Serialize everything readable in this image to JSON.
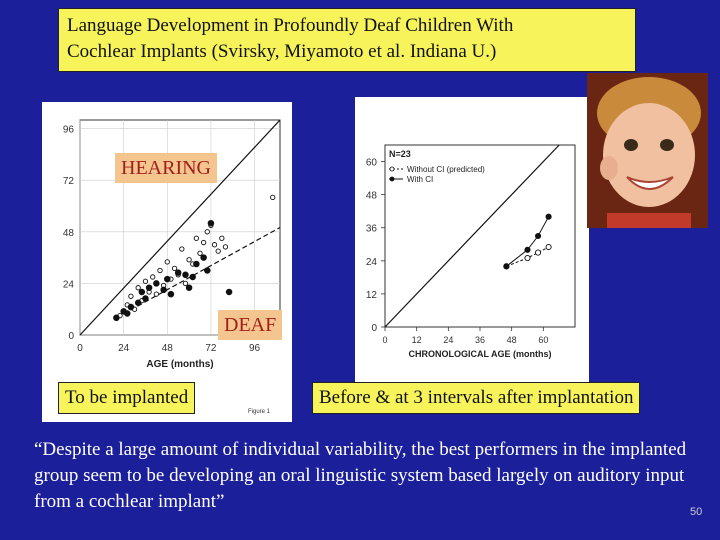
{
  "title": {
    "line1": "Language Development in Profoundly Deaf Children With",
    "line2": "Cochlear Implants (Svirsky, Miyamoto et al. Indiana  U.)"
  },
  "labels": {
    "hearing": "HEARING",
    "deaf": "DEAF",
    "to_be_implanted": "To be implanted",
    "before_after": "Before & at 3 intervals after implantation",
    "figure_caption": "Figure 1"
  },
  "quote": "“Despite a large amount of individual variability, the best performers in the implanted group seem to be developing an oral linguistic system based largely on auditory input from a cochlear implant”",
  "slide_number": "50",
  "colors": {
    "background": "#1b1f9a",
    "highlight": "#f7f35a",
    "tag_bg": "#f4c58f",
    "tag_text": "#a0201a"
  },
  "chart_data": [
    {
      "type": "scatter",
      "xlabel": "AGE (months)",
      "ylabel": "",
      "xticks": [
        "0",
        "24",
        "48",
        "72",
        "96"
      ],
      "yticks": [
        "0",
        "24",
        "48",
        "72",
        "96"
      ],
      "xlim": [
        0,
        110
      ],
      "ylim": [
        0,
        100
      ],
      "reference_line": [
        [
          0,
          0
        ],
        [
          110,
          110
        ]
      ],
      "trend_line": [
        [
          20,
          8
        ],
        [
          110,
          50
        ]
      ],
      "series": [
        {
          "style": "open",
          "points": [
            [
              22,
              9
            ],
            [
              26,
              14
            ],
            [
              28,
              18
            ],
            [
              30,
              12
            ],
            [
              32,
              22
            ],
            [
              34,
              16
            ],
            [
              36,
              25
            ],
            [
              38,
              20
            ],
            [
              40,
              27
            ],
            [
              42,
              19
            ],
            [
              44,
              30
            ],
            [
              46,
              23
            ],
            [
              48,
              34
            ],
            [
              50,
              26
            ],
            [
              52,
              31
            ],
            [
              54,
              28
            ],
            [
              56,
              40
            ],
            [
              58,
              24
            ],
            [
              60,
              35
            ],
            [
              62,
              33
            ],
            [
              64,
              45
            ],
            [
              66,
              38
            ],
            [
              68,
              43
            ],
            [
              70,
              48
            ],
            [
              72,
              51
            ],
            [
              74,
              42
            ],
            [
              76,
              39
            ],
            [
              78,
              45
            ],
            [
              80,
              41
            ],
            [
              106,
              64
            ]
          ]
        },
        {
          "style": "filled",
          "points": [
            [
              20,
              8
            ],
            [
              24,
              11
            ],
            [
              26,
              10
            ],
            [
              28,
              13
            ],
            [
              32,
              15
            ],
            [
              34,
              20
            ],
            [
              36,
              17
            ],
            [
              38,
              22
            ],
            [
              42,
              24
            ],
            [
              46,
              21
            ],
            [
              48,
              26
            ],
            [
              50,
              19
            ],
            [
              54,
              29
            ],
            [
              58,
              28
            ],
            [
              60,
              22
            ],
            [
              62,
              27
            ],
            [
              64,
              33
            ],
            [
              68,
              36
            ],
            [
              72,
              52
            ],
            [
              70,
              30
            ],
            [
              82,
              20
            ]
          ]
        }
      ]
    },
    {
      "type": "line",
      "xlabel": "CHRONOLOGICAL AGE (months)",
      "ylabel": "",
      "xticks": [
        "0",
        "12",
        "24",
        "36",
        "48",
        "60"
      ],
      "yticks": [
        "0",
        "12",
        "24",
        "36",
        "48",
        "60"
      ],
      "xlim": [
        0,
        72
      ],
      "ylim": [
        0,
        66
      ],
      "annotation": "N=23",
      "reference_line": [
        [
          0,
          0
        ],
        [
          70,
          70
        ]
      ],
      "series": [
        {
          "name": "Without CI (predicted)",
          "style": "open-dashed",
          "x": [
            46,
            54,
            58,
            62
          ],
          "y": [
            22,
            25,
            27,
            29
          ]
        },
        {
          "name": "With CI",
          "style": "filled-solid",
          "x": [
            46,
            54,
            58,
            62
          ],
          "y": [
            22,
            28,
            33,
            40
          ]
        }
      ]
    }
  ]
}
